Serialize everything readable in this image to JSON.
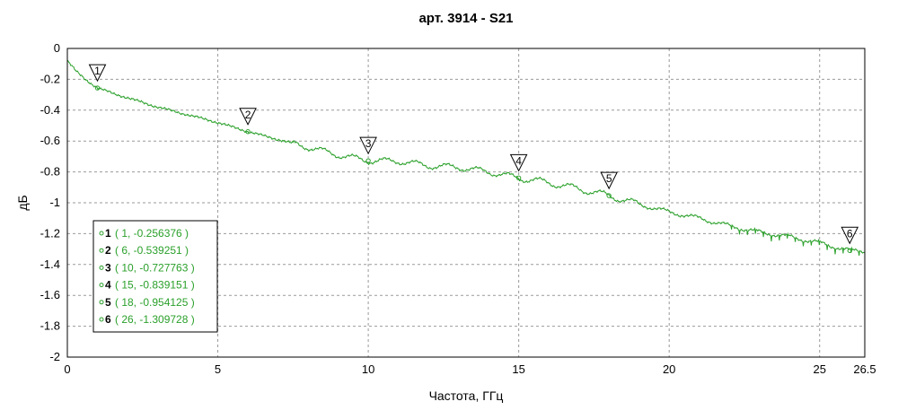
{
  "chart_data": {
    "type": "line",
    "title": "арт. 3914 - S21",
    "xlabel": "Частота, ГГц",
    "ylabel": "дБ",
    "xlim": [
      0,
      26.5
    ],
    "ylim": [
      -2,
      0
    ],
    "x_ticks": [
      "0",
      "5",
      "10",
      "15",
      "20",
      "25",
      "26.5"
    ],
    "y_ticks": [
      "0",
      "-0.2",
      "-0.4",
      "-0.6",
      "-0.8",
      "-1",
      "-1.2",
      "-1.4",
      "-1.6",
      "-1.8",
      "-2"
    ],
    "grid": true,
    "legend_position": "bottom-left",
    "series_color": "#2aa02a",
    "series": [
      {
        "x": [
          0,
          0.3,
          0.6,
          1,
          1.5,
          2,
          3,
          4,
          5,
          6,
          7,
          8,
          9,
          10,
          11,
          12,
          13,
          14,
          15,
          16,
          17,
          18,
          19,
          20,
          21,
          22,
          23,
          24,
          25,
          26,
          26.5
        ],
        "y": [
          -0.08,
          -0.15,
          -0.2,
          -0.256,
          -0.29,
          -0.32,
          -0.38,
          -0.43,
          -0.48,
          -0.539,
          -0.59,
          -0.64,
          -0.69,
          -0.728,
          -0.73,
          -0.76,
          -0.77,
          -0.8,
          -0.839,
          -0.87,
          -0.91,
          -0.954,
          -1.01,
          -1.06,
          -1.1,
          -1.15,
          -1.19,
          -1.22,
          -1.26,
          -1.31,
          -1.31
        ]
      }
    ],
    "markers": [
      {
        "id": "1",
        "x": 1,
        "y": -0.256376,
        "label": "( 1, -0.256376 )"
      },
      {
        "id": "2",
        "x": 6,
        "y": -0.539251,
        "label": "( 6, -0.539251 )"
      },
      {
        "id": "3",
        "x": 10,
        "y": -0.727763,
        "label": "( 10, -0.727763 )"
      },
      {
        "id": "4",
        "x": 15,
        "y": -0.839151,
        "label": "( 15, -0.839151 )"
      },
      {
        "id": "5",
        "x": 18,
        "y": -0.954125,
        "label": "( 18, -0.954125 )"
      },
      {
        "id": "6",
        "x": 26,
        "y": -1.309728,
        "label": "( 26, -1.309728 )"
      }
    ]
  }
}
